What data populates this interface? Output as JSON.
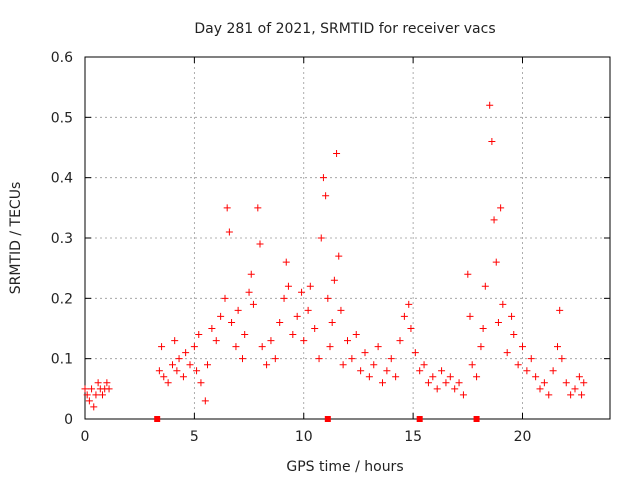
{
  "chart_data": {
    "type": "scatter",
    "title": "Day 281 of 2021, SRMTID for receiver vacs",
    "xlabel": "GPS time / hours",
    "ylabel": "SRMTID / TECUs",
    "xlim": [
      0,
      24
    ],
    "ylim": [
      0,
      0.6
    ],
    "x_ticks": [
      0,
      5,
      10,
      15,
      20
    ],
    "y_ticks": [
      0,
      0.1,
      0.2,
      0.3,
      0.4,
      0.5,
      0.6
    ],
    "x_tick_labels": [
      "0",
      "5",
      "10",
      "15",
      "20"
    ],
    "y_tick_labels": [
      "0",
      "0.1",
      "0.2",
      "0.3",
      "0.4",
      "0.5",
      "0.6"
    ],
    "grid": true,
    "marker": "+",
    "color": "#ff0000",
    "series": [
      {
        "name": "SRMTID",
        "points": [
          [
            0.0,
            0.05
          ],
          [
            0.1,
            0.04
          ],
          [
            0.2,
            0.03
          ],
          [
            0.3,
            0.05
          ],
          [
            0.4,
            0.02
          ],
          [
            0.5,
            0.04
          ],
          [
            0.6,
            0.06
          ],
          [
            0.7,
            0.05
          ],
          [
            0.8,
            0.04
          ],
          [
            0.9,
            0.05
          ],
          [
            1.0,
            0.06
          ],
          [
            1.1,
            0.05
          ],
          [
            3.4,
            0.08
          ],
          [
            3.5,
            0.12
          ],
          [
            3.6,
            0.07
          ],
          [
            3.8,
            0.06
          ],
          [
            4.0,
            0.09
          ],
          [
            4.1,
            0.13
          ],
          [
            4.2,
            0.08
          ],
          [
            4.3,
            0.1
          ],
          [
            4.5,
            0.07
          ],
          [
            4.6,
            0.11
          ],
          [
            4.8,
            0.09
          ],
          [
            5.0,
            0.12
          ],
          [
            5.1,
            0.08
          ],
          [
            5.2,
            0.14
          ],
          [
            5.3,
            0.06
          ],
          [
            5.5,
            0.03
          ],
          [
            5.6,
            0.09
          ],
          [
            5.8,
            0.15
          ],
          [
            6.0,
            0.13
          ],
          [
            6.2,
            0.17
          ],
          [
            6.4,
            0.2
          ],
          [
            6.5,
            0.35
          ],
          [
            6.6,
            0.31
          ],
          [
            6.7,
            0.16
          ],
          [
            6.9,
            0.12
          ],
          [
            7.0,
            0.18
          ],
          [
            7.2,
            0.1
          ],
          [
            7.3,
            0.14
          ],
          [
            7.5,
            0.21
          ],
          [
            7.6,
            0.24
          ],
          [
            7.7,
            0.19
          ],
          [
            7.9,
            0.35
          ],
          [
            8.0,
            0.29
          ],
          [
            8.1,
            0.12
          ],
          [
            8.3,
            0.09
          ],
          [
            8.5,
            0.13
          ],
          [
            8.7,
            0.1
          ],
          [
            8.9,
            0.16
          ],
          [
            9.1,
            0.2
          ],
          [
            9.2,
            0.26
          ],
          [
            9.3,
            0.22
          ],
          [
            9.5,
            0.14
          ],
          [
            9.7,
            0.17
          ],
          [
            9.9,
            0.21
          ],
          [
            10.0,
            0.13
          ],
          [
            10.2,
            0.18
          ],
          [
            10.3,
            0.22
          ],
          [
            10.5,
            0.15
          ],
          [
            10.7,
            0.1
          ],
          [
            10.8,
            0.3
          ],
          [
            10.9,
            0.4
          ],
          [
            11.0,
            0.37
          ],
          [
            11.1,
            0.2
          ],
          [
            11.2,
            0.12
          ],
          [
            11.3,
            0.16
          ],
          [
            11.4,
            0.23
          ],
          [
            11.5,
            0.44
          ],
          [
            11.6,
            0.27
          ],
          [
            11.7,
            0.18
          ],
          [
            11.8,
            0.09
          ],
          [
            12.0,
            0.13
          ],
          [
            12.2,
            0.1
          ],
          [
            12.4,
            0.14
          ],
          [
            12.6,
            0.08
          ],
          [
            12.8,
            0.11
          ],
          [
            13.0,
            0.07
          ],
          [
            13.2,
            0.09
          ],
          [
            13.4,
            0.12
          ],
          [
            13.6,
            0.06
          ],
          [
            13.8,
            0.08
          ],
          [
            14.0,
            0.1
          ],
          [
            14.2,
            0.07
          ],
          [
            14.4,
            0.13
          ],
          [
            14.6,
            0.17
          ],
          [
            14.8,
            0.19
          ],
          [
            14.9,
            0.15
          ],
          [
            15.1,
            0.11
          ],
          [
            15.3,
            0.08
          ],
          [
            15.5,
            0.09
          ],
          [
            15.7,
            0.06
          ],
          [
            15.9,
            0.07
          ],
          [
            16.1,
            0.05
          ],
          [
            16.3,
            0.08
          ],
          [
            16.5,
            0.06
          ],
          [
            16.7,
            0.07
          ],
          [
            16.9,
            0.05
          ],
          [
            17.1,
            0.06
          ],
          [
            17.3,
            0.04
          ],
          [
            17.5,
            0.24
          ],
          [
            17.6,
            0.17
          ],
          [
            17.7,
            0.09
          ],
          [
            17.9,
            0.07
          ],
          [
            18.1,
            0.12
          ],
          [
            18.2,
            0.15
          ],
          [
            18.3,
            0.22
          ],
          [
            18.5,
            0.52
          ],
          [
            18.6,
            0.46
          ],
          [
            18.7,
            0.33
          ],
          [
            18.8,
            0.26
          ],
          [
            18.9,
            0.16
          ],
          [
            19.0,
            0.35
          ],
          [
            19.1,
            0.19
          ],
          [
            19.3,
            0.11
          ],
          [
            19.5,
            0.17
          ],
          [
            19.6,
            0.14
          ],
          [
            19.8,
            0.09
          ],
          [
            20.0,
            0.12
          ],
          [
            20.2,
            0.08
          ],
          [
            20.4,
            0.1
          ],
          [
            20.6,
            0.07
          ],
          [
            20.8,
            0.05
          ],
          [
            21.0,
            0.06
          ],
          [
            21.2,
            0.04
          ],
          [
            21.4,
            0.08
          ],
          [
            21.6,
            0.12
          ],
          [
            21.7,
            0.18
          ],
          [
            21.8,
            0.1
          ],
          [
            22.0,
            0.06
          ],
          [
            22.2,
            0.04
          ],
          [
            22.4,
            0.05
          ],
          [
            22.6,
            0.07
          ],
          [
            22.7,
            0.04
          ],
          [
            22.8,
            0.06
          ]
        ]
      }
    ],
    "gap_markers_x": [
      3.3,
      11.1,
      15.3,
      17.9
    ]
  }
}
